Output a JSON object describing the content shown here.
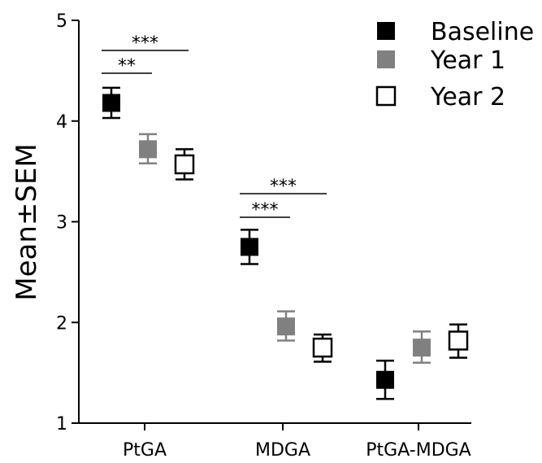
{
  "chart_data": {
    "type": "scatter",
    "ylabel": "Mean±SEM",
    "xlabel": "",
    "ylim": [
      1,
      5
    ],
    "yticks": [
      1,
      2,
      3,
      4,
      5
    ],
    "categories": [
      "PtGA",
      "MDGA",
      "PtGA-MDGA"
    ],
    "legend_position": "top-right",
    "grid": false,
    "series": [
      {
        "name": "Baseline",
        "marker": "filled-square",
        "color": "#000000",
        "values": [
          4.18,
          2.75,
          1.43
        ],
        "sem_low": [
          4.03,
          2.58,
          1.24
        ],
        "sem_high": [
          4.33,
          2.92,
          1.62
        ]
      },
      {
        "name": "Year 1",
        "marker": "filled-square",
        "color": "#808080",
        "values": [
          3.72,
          1.96,
          1.75
        ],
        "sem_low": [
          3.58,
          1.82,
          1.6
        ],
        "sem_high": [
          3.87,
          2.11,
          1.91
        ]
      },
      {
        "name": "Year 2",
        "marker": "open-square",
        "color": "#000000",
        "values": [
          3.57,
          1.75,
          1.82
        ],
        "sem_low": [
          3.42,
          1.61,
          1.65
        ],
        "sem_high": [
          3.72,
          1.88,
          1.98
        ]
      }
    ],
    "significance": [
      {
        "category": "PtGA",
        "from": "Baseline",
        "to": "Year 1",
        "label": "**"
      },
      {
        "category": "PtGA",
        "from": "Baseline",
        "to": "Year 2",
        "label": "***"
      },
      {
        "category": "MDGA",
        "from": "Baseline",
        "to": "Year 1",
        "label": "***"
      },
      {
        "category": "MDGA",
        "from": "Baseline",
        "to": "Year 2",
        "label": "***"
      }
    ]
  }
}
